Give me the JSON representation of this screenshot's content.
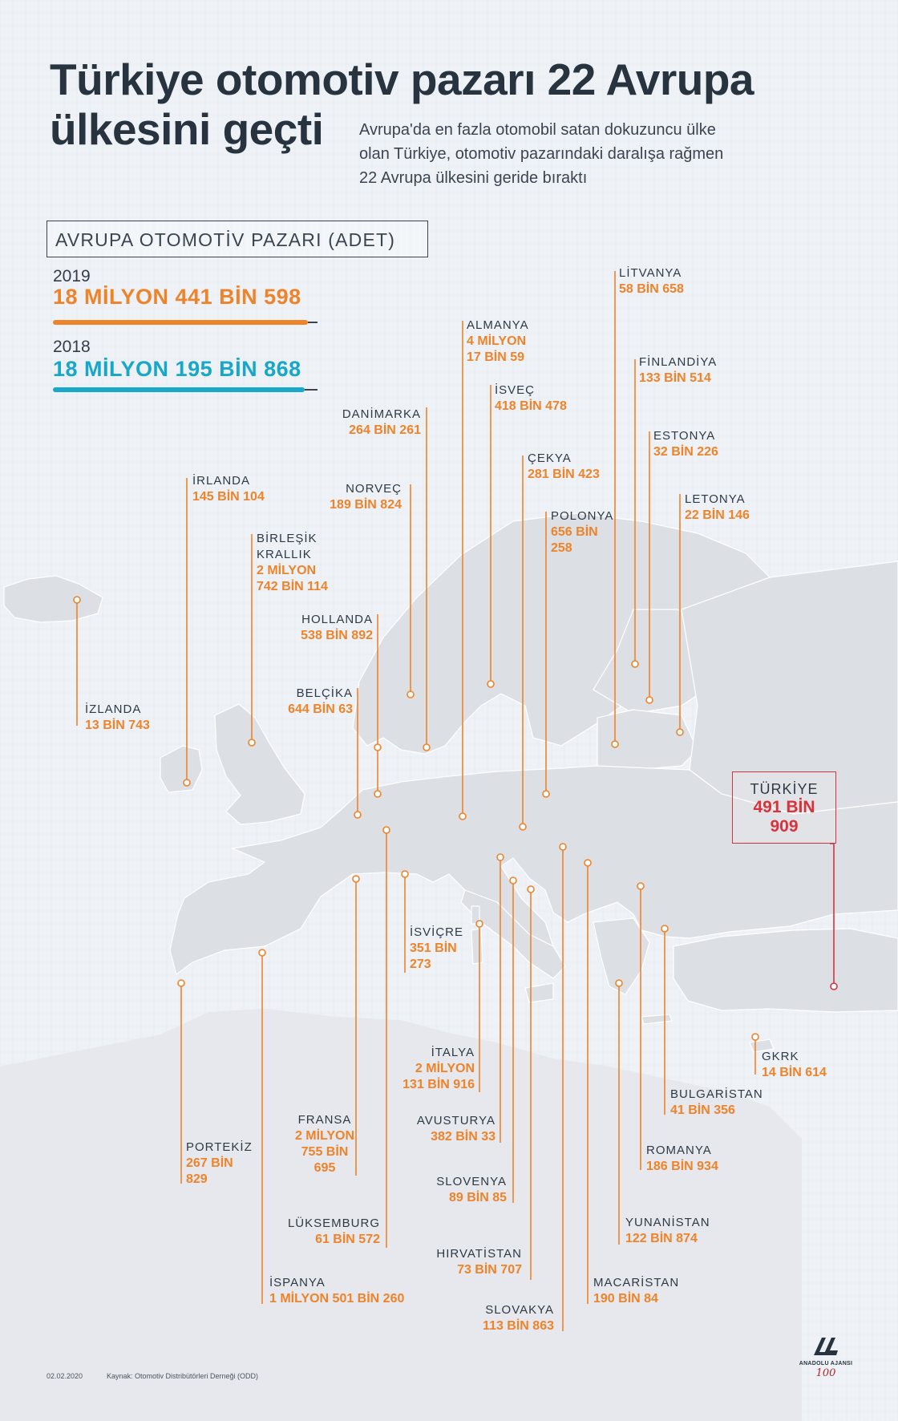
{
  "title": {
    "line1": "Türkiye otomotiv pazarı 22 Avrupa",
    "line2": "ülkesini geçti"
  },
  "subtitle": {
    "line1": "Avrupa'da en fazla otomobil satan dokuzuncu ülke",
    "line2": "olan Türkiye, otomotiv pazarındaki daralışa rağmen",
    "line3": "22 Avrupa ülkesini geride bıraktı"
  },
  "legend": {
    "heading": "AVRUPA OTOMOTİV PAZARI (ADET)",
    "year_2019": "2019",
    "total_2019": "18 MİLYON 441 BİN 598",
    "year_2018": "2018",
    "total_2018": "18 MİLYON 195 BİN 868",
    "value_2019": 18441598,
    "value_2018": 18195868,
    "color_2019": "#ee8329",
    "color_2018": "#17a7c8"
  },
  "colors": {
    "accent": "#ee8329",
    "highlight": "#d8323a",
    "land": "#dcdfe3",
    "sea": "#eef2f7",
    "title": "#27343f"
  },
  "countries": {
    "litvanya": {
      "name": "LİTVANYA",
      "value": "58 BİN 658"
    },
    "almanya": {
      "name": "ALMANYA",
      "v1": "4 MİLYON",
      "v2": "17 BİN 59"
    },
    "finlandiya": {
      "name": "FİNLANDİYA",
      "value": "133 BİN 514"
    },
    "isvec": {
      "name": "İSVEÇ",
      "value": "418 BİN 478"
    },
    "danimarka": {
      "name": "DANİMARKA",
      "value": "264 BİN 261"
    },
    "estonya": {
      "name": "ESTONYA",
      "value": "32 BİN 226"
    },
    "cekya": {
      "name": "ÇEKYA",
      "value": "281 BİN 423"
    },
    "irlanda": {
      "name": "İRLANDA",
      "value": "145 BİN 104"
    },
    "norvec": {
      "name": "NORVEÇ",
      "value": "189 BİN 824"
    },
    "letonya": {
      "name": "LETONYA",
      "value": "22 BİN 146"
    },
    "polonya": {
      "name": "POLONYA",
      "v1": "656 BİN",
      "v2": "258"
    },
    "birlesik": {
      "name1": "BİRLEŞİK",
      "name2": "KRALLIK",
      "v1": "2 MİLYON",
      "v2": "742 BİN 114"
    },
    "hollanda": {
      "name": "HOLLANDA",
      "value": "538 BİN 892"
    },
    "belcika": {
      "name": "BELÇİKA",
      "value": "644 BİN 63"
    },
    "izlanda": {
      "name": "İZLANDA",
      "value": "13 BİN 743"
    },
    "turkiye": {
      "name": "TÜRKİYE",
      "v1": "491 BİN",
      "v2": "909"
    },
    "isvicre": {
      "name": "İSVİÇRE",
      "v1": "351 BİN",
      "v2": "273"
    },
    "italya": {
      "name": "İTALYA",
      "v1": "2 MİLYON",
      "v2": "131 BİN 916"
    },
    "gkrk": {
      "name": "GKRK",
      "value": "14 BİN 614"
    },
    "bulgaristan": {
      "name": "BULGARİSTAN",
      "value": "41 BİN 356"
    },
    "avusturya": {
      "name": "AVUSTURYA",
      "value": "382 BİN 33"
    },
    "fransa": {
      "name": "FRANSA",
      "v1": "2 MİLYON",
      "v2": "755 BİN",
      "v3": "695"
    },
    "portekiz": {
      "name": "PORTEKİZ",
      "v1": "267 BİN",
      "v2": "829"
    },
    "romanya": {
      "name": "ROMANYA",
      "value": "186 BİN 934"
    },
    "slovenya": {
      "name": "SLOVENYA",
      "value": "89 BİN 85"
    },
    "luksemburg": {
      "name": "LÜKSEMBURG",
      "value": "61 BİN 572"
    },
    "yunanistan": {
      "name": "YUNANİSTAN",
      "value": "122 BİN 874"
    },
    "hirvatistan": {
      "name": "HIRVATİSTAN",
      "value": "73 BİN 707"
    },
    "ispanya": {
      "name": "İSPANYA",
      "value": "1 MİLYON 501 BİN 260"
    },
    "macaristan": {
      "name": "MACARİSTAN",
      "value": "190 BİN 84"
    },
    "slovakya": {
      "name": "SLOVAKYA",
      "value": "113 BİN 863"
    }
  },
  "footer": {
    "date": "02.02.2020",
    "source": "Kaynak: Otomotiv Distribütörleri Derneği (ODD)"
  },
  "logo": {
    "text": "ANADOLU AJANSI",
    "hundred": "100",
    "icon": "aa-logo-icon"
  }
}
